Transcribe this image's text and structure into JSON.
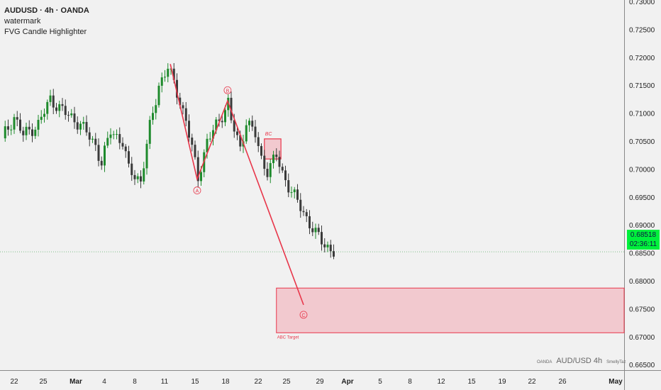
{
  "header": {
    "symbol": "AUDUSD · 4h · OANDA",
    "indicator_1": "watermark",
    "indicator_2": "FVG Candle Highlighter"
  },
  "watermark": {
    "broker": "OANDA",
    "pair": "AUD/USD 4h",
    "author": "SmellyTaz"
  },
  "price_badge": {
    "price": "0.68518",
    "countdown": "02:36:11",
    "color": "#00f03c"
  },
  "colors": {
    "up": "#1e8a2c",
    "down": "#3a3a3a",
    "pattern": "#e8364a",
    "zone_fill": "#f2c9cf"
  },
  "chart_data": {
    "type": "candlestick",
    "title": "AUDUSD · 4h · OANDA",
    "ylim": [
      0.665,
      0.73
    ],
    "y_ticks": [
      "0.73000",
      "0.72500",
      "0.72000",
      "0.71500",
      "0.71000",
      "0.70500",
      "0.70000",
      "0.69500",
      "0.69000",
      "0.68500",
      "0.68000",
      "0.67500",
      "0.67000",
      "0.66500"
    ],
    "x_ticks": [
      "22",
      "25",
      "Mar",
      "4",
      "8",
      "11",
      "15",
      "18",
      "22",
      "25",
      "29",
      "Apr",
      "5",
      "8",
      "12",
      "15",
      "19",
      "22",
      "26",
      "May"
    ],
    "price_path": [
      {
        "i": 0,
        "p": 0.7055
      },
      {
        "i": 4,
        "p": 0.7093
      },
      {
        "i": 7,
        "p": 0.7061
      },
      {
        "i": 12,
        "p": 0.708
      },
      {
        "i": 16,
        "p": 0.7125
      },
      {
        "i": 21,
        "p": 0.71
      },
      {
        "i": 26,
        "p": 0.708
      },
      {
        "i": 31,
        "p": 0.7042
      },
      {
        "i": 33,
        "p": 0.7011
      },
      {
        "i": 36,
        "p": 0.7068
      },
      {
        "i": 40,
        "p": 0.7049
      },
      {
        "i": 42,
        "p": 0.6998
      },
      {
        "i": 46,
        "p": 0.6979
      },
      {
        "i": 49,
        "p": 0.7074
      },
      {
        "i": 52,
        "p": 0.715
      },
      {
        "i": 55,
        "p": 0.7182
      },
      {
        "i": 58,
        "p": 0.7138
      },
      {
        "i": 61,
        "p": 0.7087
      },
      {
        "i": 65,
        "p": 0.6985
      },
      {
        "i": 68,
        "p": 0.7049
      },
      {
        "i": 72,
        "p": 0.7087
      },
      {
        "i": 75,
        "p": 0.7119
      },
      {
        "i": 76,
        "p": 0.7087
      },
      {
        "i": 79,
        "p": 0.7036
      },
      {
        "i": 81,
        "p": 0.7087
      },
      {
        "i": 84,
        "p": 0.7061
      },
      {
        "i": 86,
        "p": 0.7017
      },
      {
        "i": 88,
        "p": 0.6998
      },
      {
        "i": 91,
        "p": 0.7023
      },
      {
        "i": 93,
        "p": 0.6992
      },
      {
        "i": 96,
        "p": 0.696
      },
      {
        "i": 100,
        "p": 0.6922
      },
      {
        "i": 104,
        "p": 0.6884
      },
      {
        "i": 107,
        "p": 0.6865
      },
      {
        "i": 110,
        "p": 0.6852
      }
    ],
    "last_price": 0.68518,
    "abc_pattern": {
      "points": [
        {
          "label": "",
          "i": 55.8,
          "p": 0.7188
        },
        {
          "label": "A",
          "i": 64.7,
          "p": 0.6982
        },
        {
          "label": "B",
          "i": 74.8,
          "p": 0.7122
        },
        {
          "label": "C",
          "i": 100,
          "p": 0.6757
        }
      ]
    },
    "fvg_zone": {
      "label": "BC",
      "i_from": 87,
      "i_to": 92.5,
      "top": 0.7054,
      "bottom": 0.7018
    },
    "target_zone": {
      "label": "ABC Target",
      "i_from": 91,
      "top": 0.6787,
      "bottom": 0.6707
    }
  }
}
